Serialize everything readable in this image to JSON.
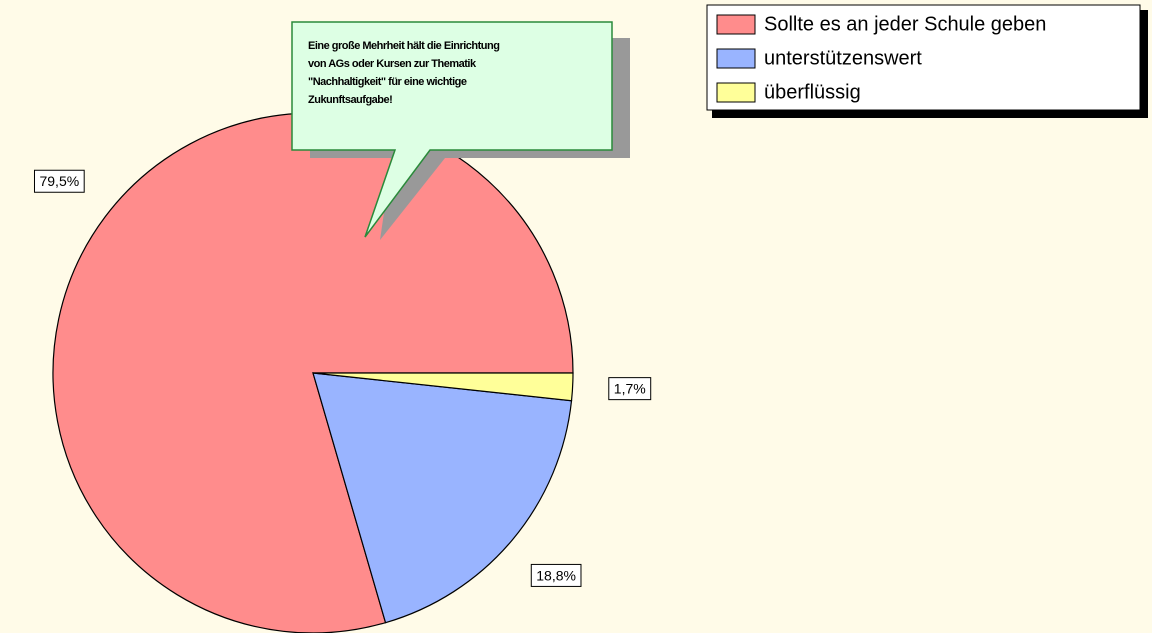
{
  "chart_data": {
    "type": "pie",
    "categories": [
      "Sollte es an jeder Schule geben",
      "unterstützenswert",
      "überflüssig"
    ],
    "values": [
      79.5,
      18.8,
      1.7
    ],
    "value_labels": [
      "79,5%",
      "18,8%",
      "1,7%"
    ],
    "colors": [
      "#ff8c8c",
      "#99b4ff",
      "#ffff99"
    ],
    "annotation": [
      "Eine große Mehrheit hält die Einrichtung",
      "von AGs oder Kursen zur Thematik",
      "\"Nachhaltigkeit\" für eine wichtige",
      "Zukunftsaufgabe!"
    ],
    "legend": "top-right"
  }
}
